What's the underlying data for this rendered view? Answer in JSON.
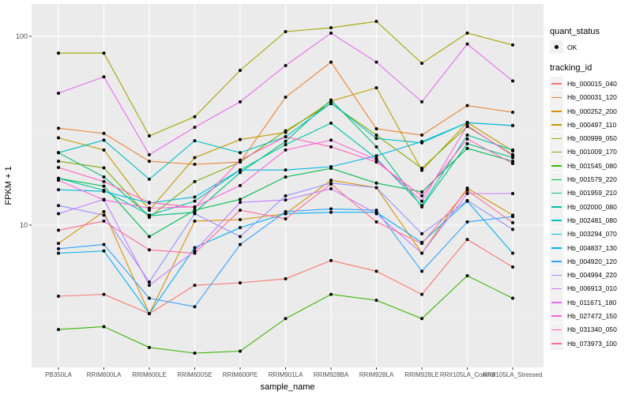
{
  "chart_data": {
    "type": "line",
    "title": "",
    "xlabel": "sample_name",
    "ylabel": "FPKM + 1",
    "yscale": "log10",
    "ylim": [
      1.9,
      140
    ],
    "yticks": [
      {
        "value": 10,
        "label": "10"
      },
      {
        "value": 100,
        "label": "100"
      }
    ],
    "grid": true,
    "legend_position": "right",
    "categories": [
      "PB350LA",
      "RRIM600LA",
      "RRIM600LE",
      "RRIM600SE",
      "RRIM600PE",
      "RRIM901LA",
      "RRIM928BA",
      "RRIM928LA",
      "RRIM928LE",
      "RRII105LA_Control",
      "RRII105LA_Stressed"
    ],
    "shape_legend": {
      "title": "quant_status",
      "items": [
        "OK"
      ]
    },
    "color_legend_title": "tracking_id",
    "series": [
      {
        "name": "Hb_000015_040",
        "color": "#F8766D",
        "values": [
          4.2,
          4.3,
          3.4,
          4.8,
          4.95,
          5.2,
          6.5,
          5.7,
          4.3,
          8.4,
          6.0
        ]
      },
      {
        "name": "Hb_000031_120",
        "color": "#EA8331",
        "values": [
          32.6,
          30.6,
          21.8,
          21.0,
          21.6,
          47.6,
          73,
          32.4,
          30,
          43,
          39.6
        ]
      },
      {
        "name": "Hb_000252_200",
        "color": "#D89000",
        "values": [
          8.0,
          11.8,
          3.4,
          10.5,
          10.7,
          11.5,
          17.3,
          15.8,
          7.1,
          15.7,
          11.3
        ]
      },
      {
        "name": "Hb_000497_110",
        "color": "#C09B00",
        "values": [
          29,
          25,
          12,
          22.8,
          28.4,
          31,
          45.4,
          53.4,
          19.5,
          35,
          24.7
        ]
      },
      {
        "name": "Hb_000999_050",
        "color": "#A3A500",
        "values": [
          81.5,
          81.5,
          29.7,
          37.5,
          66,
          106,
          111,
          120,
          72,
          104,
          90
        ]
      },
      {
        "name": "Hb_001009_170",
        "color": "#7CAE00",
        "values": [
          21.8,
          20.1,
          11,
          17,
          21.6,
          31.6,
          44,
          30,
          20,
          33.3,
          23.6
        ]
      },
      {
        "name": "Hb_001545_080",
        "color": "#39B600",
        "values": [
          2.8,
          2.9,
          2.25,
          2.1,
          2.15,
          3.2,
          4.3,
          4.0,
          3.2,
          5.4,
          4.1
        ]
      },
      {
        "name": "Hb_001579_220",
        "color": "#00BB4E",
        "values": [
          17.7,
          16.1,
          8.7,
          12,
          13.7,
          18,
          20,
          16.7,
          15,
          25.5,
          21.8
        ]
      },
      {
        "name": "Hb_001959_210",
        "color": "#00BF7D",
        "values": [
          24.2,
          18,
          11.2,
          11.7,
          19,
          27.8,
          46,
          26,
          12.5,
          27,
          22.8
        ]
      },
      {
        "name": "Hb_002000_080",
        "color": "#00C1A3",
        "values": [
          17.7,
          15.3,
          11.3,
          13.4,
          19.6,
          26.7,
          34.7,
          22.6,
          12.7,
          30,
          25
        ]
      },
      {
        "name": "Hb_002481_080",
        "color": "#00BFC4",
        "values": [
          24.2,
          28.2,
          17.5,
          28,
          24.2,
          29.4,
          44.3,
          28.8,
          27.3,
          34.9,
          33.7
        ]
      },
      {
        "name": "Hb_003294_070",
        "color": "#00BAE0",
        "values": [
          15.4,
          15.1,
          13.1,
          14.1,
          19.6,
          19.6,
          20.4,
          23.3,
          27.7,
          34.9,
          33.7
        ]
      },
      {
        "name": "Hb_004837_130",
        "color": "#00B0F6",
        "values": [
          7.1,
          7.3,
          3.4,
          7.6,
          9.7,
          11.5,
          11.7,
          11.7,
          8.1,
          13.4,
          7.1
        ]
      },
      {
        "name": "Hb_004920_120",
        "color": "#35A2FF",
        "values": [
          7.5,
          7.9,
          4.1,
          3.7,
          7.9,
          11.8,
          12.2,
          12,
          5.7,
          10.4,
          11.1
        ]
      },
      {
        "name": "Hb_004994_220",
        "color": "#9590FF",
        "values": [
          12.7,
          11.3,
          5.0,
          11.5,
          8.7,
          14.3,
          16.7,
          15.8,
          9,
          13.5,
          9.5
        ]
      },
      {
        "name": "Hb_006913_010",
        "color": "#C77CFF",
        "values": [
          11.5,
          13.7,
          4.8,
          7.3,
          13.2,
          13.6,
          15.6,
          11.5,
          7.1,
          14.7,
          14.7
        ]
      },
      {
        "name": "Hb_011671_180",
        "color": "#E76BF3",
        "values": [
          50,
          61,
          23.6,
          33,
          45,
          70,
          104,
          73,
          45,
          91,
          58
        ]
      },
      {
        "name": "Hb_027472_150",
        "color": "#FA62DB",
        "values": [
          17.3,
          13.6,
          12.3,
          12.5,
          16.2,
          25,
          28.2,
          22.2,
          13.4,
          33.7,
          23.3
        ]
      },
      {
        "name": "Hb_031340_050",
        "color": "#FF62BC",
        "values": [
          20.2,
          17,
          13.2,
          12.4,
          22.1,
          29.4,
          26,
          21.6,
          14.3,
          28.6,
          21.2
        ]
      },
      {
        "name": "Hb_073973_100",
        "color": "#FF6C91",
        "values": [
          9.4,
          10.5,
          7.4,
          7.1,
          12,
          10.8,
          16.5,
          10.4,
          8,
          15.3,
          10.3
        ]
      }
    ]
  }
}
